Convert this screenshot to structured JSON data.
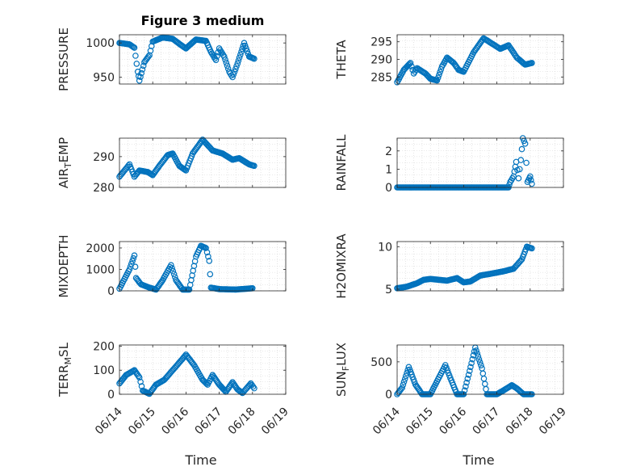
{
  "chart_data": [
    {
      "type": "scatter",
      "title": "Figure 3 medium",
      "ylabel": "PRESSURE",
      "xlabel": "",
      "ylim": [
        940,
        1012
      ],
      "yticks": [
        "950",
        "1000"
      ],
      "xticks": [
        "06/14",
        "06/15",
        "06/16",
        "06/17",
        "06/18",
        "06/19"
      ],
      "grid": "minor",
      "color": "#0072BD",
      "keys": [
        [
          14.0,
          1000
        ],
        [
          14.3,
          998
        ],
        [
          14.45,
          993
        ],
        [
          14.55,
          958
        ],
        [
          14.6,
          945
        ],
        [
          14.75,
          972
        ],
        [
          14.9,
          982
        ],
        [
          15.0,
          1002
        ],
        [
          15.3,
          1008
        ],
        [
          15.6,
          1006
        ],
        [
          15.85,
          997
        ],
        [
          16.0,
          992
        ],
        [
          16.3,
          1005
        ],
        [
          16.6,
          1003
        ],
        [
          16.75,
          987
        ],
        [
          16.9,
          975
        ],
        [
          17.0,
          992
        ],
        [
          17.15,
          980
        ],
        [
          17.3,
          958
        ],
        [
          17.4,
          950
        ],
        [
          17.55,
          970
        ],
        [
          17.75,
          1000
        ],
        [
          17.9,
          980
        ],
        [
          18.05,
          977
        ]
      ]
    },
    {
      "type": "scatter",
      "title": "",
      "ylabel": "THETA",
      "xlabel": "",
      "ylim": [
        283,
        297
      ],
      "yticks": [
        "285",
        "290",
        "295"
      ],
      "xticks": [
        "06/14",
        "06/15",
        "06/16",
        "06/17",
        "06/18",
        "06/19"
      ],
      "grid": "minor",
      "color": "#0072BD",
      "keys": [
        [
          14.0,
          283.5
        ],
        [
          14.2,
          287
        ],
        [
          14.4,
          289
        ],
        [
          14.5,
          286
        ],
        [
          14.6,
          287.5
        ],
        [
          14.85,
          286
        ],
        [
          15.0,
          284.5
        ],
        [
          15.2,
          284
        ],
        [
          15.35,
          288
        ],
        [
          15.5,
          290.5
        ],
        [
          15.7,
          289
        ],
        [
          15.85,
          287
        ],
        [
          16.0,
          286.5
        ],
        [
          16.3,
          292
        ],
        [
          16.6,
          296
        ],
        [
          16.85,
          294.5
        ],
        [
          17.1,
          293
        ],
        [
          17.35,
          294
        ],
        [
          17.6,
          290.5
        ],
        [
          17.85,
          288.5
        ],
        [
          18.05,
          289
        ]
      ]
    },
    {
      "type": "scatter",
      "title": "",
      "ylabel": "AIR_TEMP",
      "ylabel_main": "AIR",
      "ylabel_sub": "T",
      "ylabel_rest": "EMP",
      "xlabel": "",
      "ylim": [
        280,
        296
      ],
      "yticks": [
        "280",
        "290"
      ],
      "xticks": [
        "06/14",
        "06/15",
        "06/16",
        "06/17",
        "06/18",
        "06/19"
      ],
      "grid": "minor",
      "color": "#0072BD",
      "keys": [
        [
          14.0,
          283.5
        ],
        [
          14.3,
          287.5
        ],
        [
          14.45,
          283.5
        ],
        [
          14.6,
          285.5
        ],
        [
          14.85,
          285
        ],
        [
          15.0,
          284
        ],
        [
          15.2,
          287
        ],
        [
          15.45,
          290.5
        ],
        [
          15.6,
          291
        ],
        [
          15.8,
          287
        ],
        [
          16.0,
          285.5
        ],
        [
          16.2,
          291
        ],
        [
          16.5,
          295.5
        ],
        [
          16.8,
          292
        ],
        [
          17.1,
          291
        ],
        [
          17.4,
          289
        ],
        [
          17.6,
          289.5
        ],
        [
          17.9,
          287.5
        ],
        [
          18.05,
          287
        ]
      ]
    },
    {
      "type": "scatter",
      "title": "",
      "ylabel": "RAINFALL",
      "xlabel": "",
      "ylim": [
        0,
        2.7
      ],
      "yticks": [
        "0",
        "1",
        "2"
      ],
      "xticks": [
        "06/14",
        "06/15",
        "06/16",
        "06/17",
        "06/18",
        "06/19"
      ],
      "grid": "minor",
      "color": "#0072BD",
      "keys": [
        [
          14.0,
          0
        ],
        [
          17.35,
          0
        ],
        [
          17.4,
          0.3
        ],
        [
          17.5,
          0.6
        ],
        [
          17.58,
          1.4
        ],
        [
          17.65,
          0.5
        ],
        [
          17.72,
          1.5
        ],
        [
          17.78,
          2.7
        ],
        [
          17.85,
          2.4
        ],
        [
          17.92,
          0.3
        ],
        [
          18.0,
          0.6
        ],
        [
          18.05,
          0.2
        ]
      ]
    },
    {
      "type": "scatter",
      "title": "",
      "ylabel": "MIXDEPTH",
      "xlabel": "",
      "ylim": [
        0,
        2300
      ],
      "yticks": [
        "0",
        "1000",
        "2000"
      ],
      "xticks": [
        "06/14",
        "06/15",
        "06/16",
        "06/17",
        "06/18",
        "06/19"
      ],
      "grid": "minor",
      "color": "#0072BD",
      "keys": [
        [
          14.0,
          100
        ],
        [
          14.3,
          1000
        ],
        [
          14.45,
          1650
        ],
        [
          14.5,
          600
        ],
        [
          14.65,
          300
        ],
        [
          14.9,
          150
        ],
        [
          15.1,
          60
        ],
        [
          15.3,
          500
        ],
        [
          15.55,
          1200
        ],
        [
          15.7,
          500
        ],
        [
          15.9,
          60
        ],
        [
          16.1,
          60
        ],
        [
          16.3,
          1600
        ],
        [
          16.45,
          2100
        ],
        [
          16.6,
          2000
        ],
        [
          16.7,
          1400
        ],
        [
          16.75,
          150
        ],
        [
          17.0,
          80
        ],
        [
          17.5,
          60
        ],
        [
          18.0,
          120
        ]
      ]
    },
    {
      "type": "scatter",
      "title": "",
      "ylabel": "H2OMIXRA",
      "xlabel": "",
      "ylim": [
        4.8,
        10.6
      ],
      "yticks": [
        "5",
        "10"
      ],
      "xticks": [
        "06/14",
        "06/15",
        "06/16",
        "06/17",
        "06/18",
        "06/19"
      ],
      "grid": "minor",
      "color": "#0072BD",
      "keys": [
        [
          14.0,
          5.1
        ],
        [
          14.3,
          5.3
        ],
        [
          14.6,
          5.7
        ],
        [
          14.8,
          6.1
        ],
        [
          15.0,
          6.2
        ],
        [
          15.5,
          6.0
        ],
        [
          15.8,
          6.3
        ],
        [
          16.0,
          5.8
        ],
        [
          16.2,
          5.9
        ],
        [
          16.5,
          6.6
        ],
        [
          16.8,
          6.8
        ],
        [
          17.2,
          7.1
        ],
        [
          17.5,
          7.4
        ],
        [
          17.75,
          8.5
        ],
        [
          17.9,
          10.0
        ],
        [
          18.05,
          9.8
        ]
      ]
    },
    {
      "type": "scatter",
      "title": "",
      "ylabel": "TERR_MSL",
      "ylabel_main": "TERR",
      "ylabel_sub": "M",
      "ylabel_rest": "SL",
      "xlabel": "Time",
      "ylim": [
        0,
        205
      ],
      "yticks": [
        "0",
        "100",
        "200"
      ],
      "xticks": [
        "06/14",
        "06/15",
        "06/16",
        "06/17",
        "06/18",
        "06/19"
      ],
      "grid": "minor",
      "color": "#0072BD",
      "keys": [
        [
          14.0,
          45
        ],
        [
          14.2,
          80
        ],
        [
          14.45,
          100
        ],
        [
          14.6,
          70
        ],
        [
          14.7,
          15
        ],
        [
          14.9,
          2
        ],
        [
          15.1,
          40
        ],
        [
          15.35,
          60
        ],
        [
          15.6,
          100
        ],
        [
          15.85,
          140
        ],
        [
          16.0,
          165
        ],
        [
          16.25,
          120
        ],
        [
          16.5,
          60
        ],
        [
          16.65,
          40
        ],
        [
          16.8,
          80
        ],
        [
          17.0,
          40
        ],
        [
          17.2,
          10
        ],
        [
          17.4,
          50
        ],
        [
          17.55,
          20
        ],
        [
          17.7,
          5
        ],
        [
          17.95,
          45
        ],
        [
          18.05,
          25
        ]
      ]
    },
    {
      "type": "scatter",
      "title": "",
      "ylabel": "SUN_FLUX",
      "ylabel_main": "SUN",
      "ylabel_sub": "F",
      "ylabel_rest": "LUX",
      "xlabel": "Time",
      "ylim": [
        0,
        760
      ],
      "yticks": [
        "0",
        "500"
      ],
      "xticks": [
        "06/14",
        "06/15",
        "06/16",
        "06/17",
        "06/18",
        "06/19"
      ],
      "grid": "minor",
      "color": "#0072BD",
      "keys": [
        [
          14.0,
          0
        ],
        [
          14.15,
          100
        ],
        [
          14.35,
          420
        ],
        [
          14.55,
          150
        ],
        [
          14.75,
          0
        ],
        [
          15.0,
          0
        ],
        [
          15.2,
          200
        ],
        [
          15.45,
          450
        ],
        [
          15.6,
          250
        ],
        [
          15.8,
          0
        ],
        [
          16.0,
          0
        ],
        [
          16.15,
          300
        ],
        [
          16.35,
          720
        ],
        [
          16.55,
          400
        ],
        [
          16.7,
          0
        ],
        [
          17.0,
          0
        ],
        [
          17.2,
          60
        ],
        [
          17.45,
          140
        ],
        [
          17.6,
          90
        ],
        [
          17.8,
          0
        ],
        [
          18.05,
          0
        ]
      ]
    }
  ]
}
